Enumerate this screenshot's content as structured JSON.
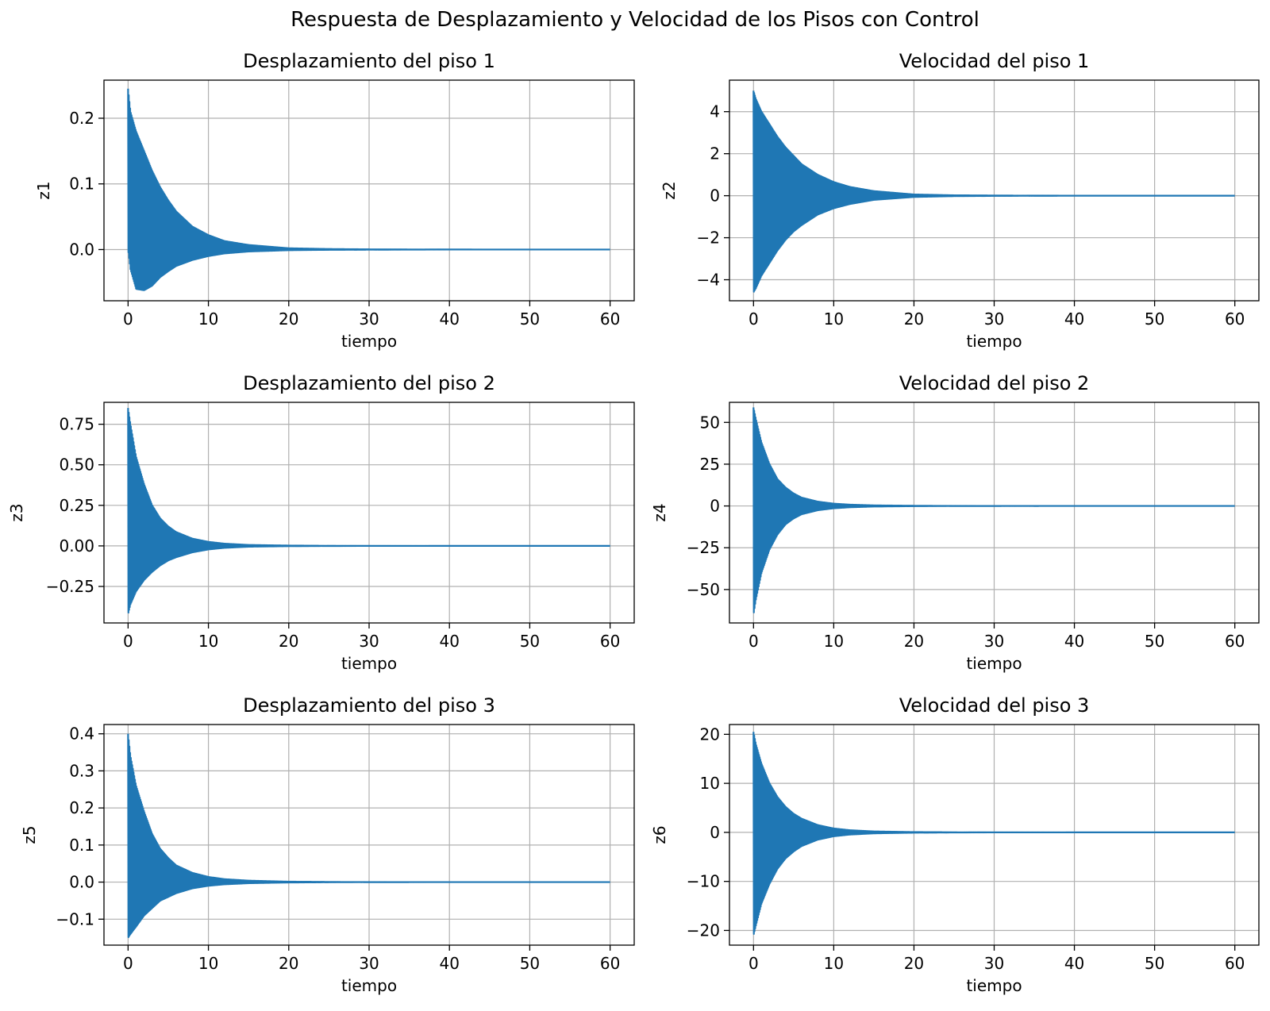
{
  "figure": {
    "title": "Respuesta de Desplazamiento y Velocidad de los Pisos con Control",
    "line_color": "#1f77b4",
    "grid_color": "#b0b0b0"
  },
  "chart_data": [
    {
      "type": "line",
      "title": "Desplazamiento del piso 1",
      "xlabel": "tiempo",
      "ylabel": "z1",
      "xlim": [
        -3,
        63
      ],
      "ylim": [
        -0.078,
        0.258
      ],
      "xticks": [
        0,
        10,
        20,
        30,
        40,
        50,
        60
      ],
      "yticks": [
        0.0,
        0.1,
        0.2
      ],
      "ytick_labels": [
        "0.0",
        "0.1",
        "0.2"
      ],
      "grid": true,
      "series": [
        {
          "x": [
            0,
            0.3,
            1,
            2,
            3,
            4,
            5,
            6,
            8,
            10,
            12,
            15,
            20,
            25,
            30,
            40,
            50,
            60
          ],
          "upper": [
            0.245,
            0.21,
            0.18,
            0.15,
            0.12,
            0.095,
            0.075,
            0.058,
            0.035,
            0.022,
            0.013,
            0.007,
            0.002,
            0.0008,
            0.0003,
            0.0001,
            0.0,
            0.0
          ],
          "lower": [
            0.0,
            -0.03,
            -0.06,
            -0.062,
            -0.055,
            -0.042,
            -0.033,
            -0.025,
            -0.016,
            -0.01,
            -0.006,
            -0.003,
            -0.001,
            -0.0004,
            -0.0002,
            0.0,
            0.0,
            0.0
          ]
        }
      ]
    },
    {
      "type": "line",
      "title": "Velocidad del piso 1",
      "xlabel": "tiempo",
      "ylabel": "z2",
      "xlim": [
        -3,
        63
      ],
      "ylim": [
        -5.0,
        5.5
      ],
      "xticks": [
        0,
        10,
        20,
        30,
        40,
        50,
        60
      ],
      "yticks": [
        -4,
        -2,
        0,
        2,
        4
      ],
      "ytick_labels": [
        "−4",
        "−2",
        "0",
        "2",
        "4"
      ],
      "grid": true,
      "series": [
        {
          "x": [
            0,
            0.3,
            1,
            2,
            3,
            4,
            5,
            6,
            8,
            10,
            12,
            15,
            20,
            25,
            30,
            40,
            50,
            60
          ],
          "upper": [
            5.0,
            4.6,
            4.0,
            3.4,
            2.8,
            2.3,
            1.9,
            1.5,
            1.0,
            0.65,
            0.42,
            0.22,
            0.06,
            0.02,
            0.008,
            0.002,
            0.0,
            0.0
          ],
          "lower": [
            -4.6,
            -4.4,
            -3.8,
            -3.2,
            -2.6,
            -2.1,
            -1.7,
            -1.4,
            -0.9,
            -0.6,
            -0.4,
            -0.2,
            -0.06,
            -0.02,
            -0.008,
            -0.002,
            0.0,
            0.0
          ]
        }
      ]
    },
    {
      "type": "line",
      "title": "Desplazamiento del piso 2",
      "xlabel": "tiempo",
      "ylabel": "z3",
      "xlim": [
        -3,
        63
      ],
      "ylim": [
        -0.475,
        0.885
      ],
      "xticks": [
        0,
        10,
        20,
        30,
        40,
        50,
        60
      ],
      "yticks": [
        -0.25,
        0.0,
        0.25,
        0.5,
        0.75
      ],
      "ytick_labels": [
        "−0.25",
        "0.00",
        "0.25",
        "0.50",
        "0.75"
      ],
      "grid": true,
      "series": [
        {
          "x": [
            0,
            0.3,
            1,
            2,
            3,
            4,
            5,
            6,
            8,
            10,
            12,
            15,
            20,
            25,
            30,
            40,
            50,
            60
          ],
          "upper": [
            0.85,
            0.75,
            0.55,
            0.38,
            0.25,
            0.17,
            0.12,
            0.085,
            0.045,
            0.025,
            0.014,
            0.006,
            0.002,
            0.0006,
            0.0002,
            0.0,
            0.0,
            0.0
          ],
          "lower": [
            -0.42,
            -0.36,
            -0.28,
            -0.21,
            -0.16,
            -0.12,
            -0.09,
            -0.07,
            -0.04,
            -0.022,
            -0.012,
            -0.005,
            -0.0015,
            -0.0005,
            -0.0002,
            0.0,
            0.0,
            0.0
          ]
        }
      ]
    },
    {
      "type": "line",
      "title": "Velocidad del piso 2",
      "xlabel": "tiempo",
      "ylabel": "z4",
      "xlim": [
        -3,
        63
      ],
      "ylim": [
        -70,
        62
      ],
      "xticks": [
        0,
        10,
        20,
        30,
        40,
        50,
        60
      ],
      "yticks": [
        -50,
        -25,
        0,
        25,
        50
      ],
      "ytick_labels": [
        "−50",
        "−25",
        "0",
        "25",
        "50"
      ],
      "grid": true,
      "series": [
        {
          "x": [
            0,
            0.3,
            1,
            2,
            3,
            4,
            5,
            6,
            8,
            10,
            12,
            15,
            20,
            25,
            30,
            40,
            50,
            60
          ],
          "upper": [
            59,
            52,
            38,
            25,
            16,
            11,
            7.5,
            5.0,
            2.6,
            1.4,
            0.8,
            0.35,
            0.1,
            0.03,
            0.01,
            0.0,
            0.0,
            0.0
          ],
          "lower": [
            -65,
            -56,
            -40,
            -26,
            -17,
            -11,
            -7.5,
            -5.0,
            -2.6,
            -1.4,
            -0.8,
            -0.35,
            -0.1,
            -0.03,
            -0.01,
            0.0,
            0.0,
            0.0
          ]
        }
      ]
    },
    {
      "type": "line",
      "title": "Desplazamiento del piso 3",
      "xlabel": "tiempo",
      "ylabel": "z5",
      "xlim": [
        -3,
        63
      ],
      "ylim": [
        -0.17,
        0.425
      ],
      "xticks": [
        0,
        10,
        20,
        30,
        40,
        50,
        60
      ],
      "yticks": [
        -0.1,
        0.0,
        0.1,
        0.2,
        0.3,
        0.4
      ],
      "ytick_labels": [
        "−0.1",
        "0.0",
        "0.1",
        "0.2",
        "0.3",
        "0.4"
      ],
      "grid": true,
      "series": [
        {
          "x": [
            0,
            0.3,
            1,
            2,
            3,
            4,
            5,
            6,
            8,
            10,
            12,
            15,
            20,
            25,
            30,
            40,
            50,
            60
          ],
          "upper": [
            0.4,
            0.34,
            0.26,
            0.19,
            0.13,
            0.09,
            0.065,
            0.045,
            0.025,
            0.014,
            0.008,
            0.004,
            0.0012,
            0.0004,
            0.0001,
            0.0,
            0.0,
            0.0
          ],
          "lower": [
            -0.15,
            -0.14,
            -0.12,
            -0.09,
            -0.07,
            -0.05,
            -0.04,
            -0.03,
            -0.017,
            -0.01,
            -0.006,
            -0.003,
            -0.001,
            -0.0003,
            -0.0001,
            0.0,
            0.0,
            0.0
          ]
        }
      ]
    },
    {
      "type": "line",
      "title": "Velocidad del piso 3",
      "xlabel": "tiempo",
      "ylabel": "z6",
      "xlim": [
        -3,
        63
      ],
      "ylim": [
        -23,
        22
      ],
      "xticks": [
        0,
        10,
        20,
        30,
        40,
        50,
        60
      ],
      "yticks": [
        -20,
        -10,
        0,
        10,
        20
      ],
      "ytick_labels": [
        "−20",
        "−10",
        "0",
        "10",
        "20"
      ],
      "grid": true,
      "series": [
        {
          "x": [
            0,
            0.3,
            1,
            2,
            3,
            4,
            5,
            6,
            8,
            10,
            12,
            15,
            20,
            25,
            30,
            40,
            50,
            60
          ],
          "upper": [
            20.5,
            18,
            14,
            10,
            7.2,
            5.2,
            3.8,
            2.8,
            1.5,
            0.8,
            0.45,
            0.2,
            0.06,
            0.02,
            0.006,
            0.0,
            0.0,
            0.0
          ],
          "lower": [
            -21,
            -19,
            -14.5,
            -10.5,
            -7.4,
            -5.3,
            -3.9,
            -2.8,
            -1.5,
            -0.8,
            -0.45,
            -0.2,
            -0.06,
            -0.02,
            -0.006,
            0.0,
            0.0,
            0.0
          ]
        }
      ]
    }
  ]
}
